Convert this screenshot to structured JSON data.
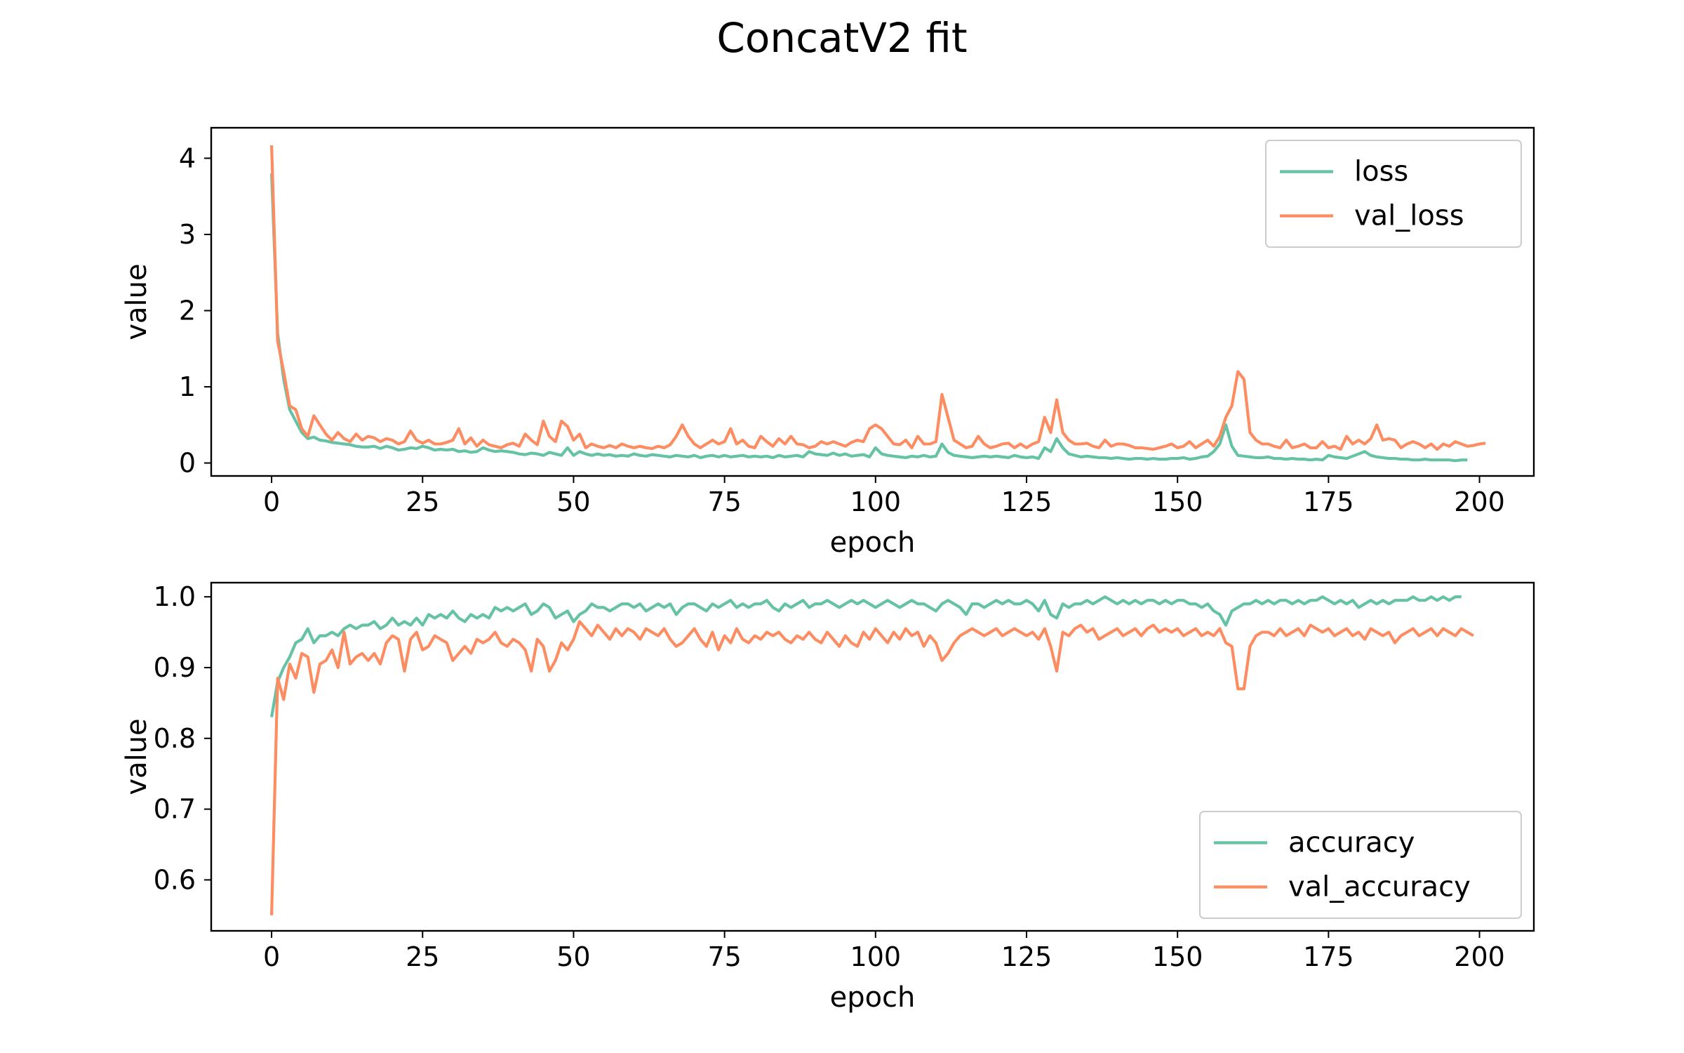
{
  "figure_title": "ConcatV2 fit",
  "colors": {
    "series_1": "#66c2a5",
    "series_2": "#fc8d62",
    "axes": "#000000",
    "legend_border": "#cccccc"
  },
  "chart_data": [
    {
      "type": "line",
      "xlabel": "epoch",
      "ylabel": "value",
      "xlim": [
        -10,
        209
      ],
      "ylim": [
        -0.17,
        4.4
      ],
      "xticks": [
        0,
        25,
        50,
        75,
        100,
        125,
        150,
        175,
        200
      ],
      "yticks": [
        0,
        1,
        2,
        3,
        4
      ],
      "ytick_labels": [
        "0",
        "1",
        "2",
        "3",
        "4"
      ],
      "grid": false,
      "legend_position": "top-right",
      "series": [
        {
          "name": "loss",
          "color": "#66c2a5",
          "values": [
            3.8,
            1.7,
            1.1,
            0.7,
            0.55,
            0.4,
            0.32,
            0.34,
            0.3,
            0.29,
            0.27,
            0.26,
            0.25,
            0.24,
            0.22,
            0.21,
            0.21,
            0.22,
            0.19,
            0.22,
            0.2,
            0.17,
            0.18,
            0.2,
            0.19,
            0.22,
            0.2,
            0.17,
            0.18,
            0.17,
            0.18,
            0.15,
            0.16,
            0.14,
            0.15,
            0.2,
            0.17,
            0.15,
            0.16,
            0.15,
            0.14,
            0.12,
            0.11,
            0.13,
            0.12,
            0.1,
            0.14,
            0.12,
            0.1,
            0.2,
            0.1,
            0.15,
            0.12,
            0.1,
            0.12,
            0.1,
            0.11,
            0.09,
            0.1,
            0.09,
            0.12,
            0.1,
            0.09,
            0.11,
            0.1,
            0.09,
            0.08,
            0.1,
            0.09,
            0.08,
            0.1,
            0.07,
            0.09,
            0.1,
            0.08,
            0.1,
            0.08,
            0.09,
            0.1,
            0.08,
            0.09,
            0.08,
            0.09,
            0.07,
            0.1,
            0.08,
            0.09,
            0.1,
            0.08,
            0.15,
            0.12,
            0.11,
            0.1,
            0.13,
            0.1,
            0.12,
            0.09,
            0.1,
            0.11,
            0.08,
            0.2,
            0.12,
            0.1,
            0.09,
            0.08,
            0.07,
            0.09,
            0.08,
            0.1,
            0.08,
            0.09,
            0.25,
            0.14,
            0.1,
            0.09,
            0.08,
            0.07,
            0.08,
            0.09,
            0.08,
            0.09,
            0.08,
            0.07,
            0.1,
            0.08,
            0.07,
            0.08,
            0.06,
            0.2,
            0.15,
            0.32,
            0.2,
            0.12,
            0.1,
            0.08,
            0.09,
            0.08,
            0.07,
            0.07,
            0.06,
            0.07,
            0.06,
            0.05,
            0.06,
            0.06,
            0.05,
            0.06,
            0.05,
            0.05,
            0.06,
            0.06,
            0.07,
            0.05,
            0.06,
            0.08,
            0.09,
            0.15,
            0.25,
            0.5,
            0.22,
            0.1,
            0.09,
            0.08,
            0.07,
            0.07,
            0.08,
            0.06,
            0.06,
            0.05,
            0.06,
            0.05,
            0.05,
            0.04,
            0.05,
            0.04,
            0.1,
            0.08,
            0.07,
            0.06,
            0.09,
            0.12,
            0.15,
            0.1,
            0.08,
            0.07,
            0.06,
            0.06,
            0.05,
            0.05,
            0.04,
            0.04,
            0.05,
            0.04,
            0.04,
            0.04,
            0.04,
            0.03,
            0.04,
            0.04
          ]
        },
        {
          "name": "val_loss",
          "color": "#fc8d62",
          "values": [
            4.17,
            1.6,
            1.2,
            0.75,
            0.7,
            0.45,
            0.35,
            0.62,
            0.5,
            0.38,
            0.3,
            0.4,
            0.32,
            0.28,
            0.38,
            0.3,
            0.35,
            0.33,
            0.28,
            0.32,
            0.3,
            0.25,
            0.28,
            0.42,
            0.3,
            0.26,
            0.3,
            0.25,
            0.25,
            0.27,
            0.3,
            0.45,
            0.25,
            0.33,
            0.22,
            0.3,
            0.24,
            0.22,
            0.2,
            0.24,
            0.26,
            0.22,
            0.38,
            0.3,
            0.24,
            0.55,
            0.35,
            0.28,
            0.55,
            0.48,
            0.3,
            0.38,
            0.2,
            0.25,
            0.22,
            0.2,
            0.23,
            0.2,
            0.25,
            0.22,
            0.2,
            0.22,
            0.2,
            0.19,
            0.22,
            0.2,
            0.24,
            0.35,
            0.5,
            0.35,
            0.25,
            0.2,
            0.25,
            0.3,
            0.25,
            0.28,
            0.45,
            0.25,
            0.3,
            0.22,
            0.2,
            0.35,
            0.28,
            0.22,
            0.32,
            0.25,
            0.35,
            0.25,
            0.24,
            0.2,
            0.22,
            0.28,
            0.25,
            0.28,
            0.25,
            0.22,
            0.27,
            0.3,
            0.28,
            0.45,
            0.5,
            0.45,
            0.35,
            0.25,
            0.24,
            0.3,
            0.2,
            0.35,
            0.25,
            0.25,
            0.28,
            0.9,
            0.6,
            0.3,
            0.25,
            0.2,
            0.22,
            0.35,
            0.25,
            0.2,
            0.22,
            0.25,
            0.26,
            0.2,
            0.25,
            0.2,
            0.25,
            0.28,
            0.6,
            0.4,
            0.83,
            0.4,
            0.3,
            0.25,
            0.25,
            0.26,
            0.22,
            0.2,
            0.3,
            0.22,
            0.25,
            0.25,
            0.23,
            0.2,
            0.2,
            0.19,
            0.18,
            0.2,
            0.22,
            0.25,
            0.2,
            0.22,
            0.28,
            0.2,
            0.25,
            0.3,
            0.22,
            0.35,
            0.6,
            0.75,
            1.2,
            1.1,
            0.4,
            0.3,
            0.25,
            0.25,
            0.22,
            0.2,
            0.3,
            0.2,
            0.22,
            0.25,
            0.2,
            0.2,
            0.28,
            0.2,
            0.22,
            0.18,
            0.35,
            0.25,
            0.3,
            0.25,
            0.32,
            0.5,
            0.3,
            0.32,
            0.3,
            0.2,
            0.25,
            0.28,
            0.25,
            0.2,
            0.25,
            0.18,
            0.25,
            0.22,
            0.28,
            0.25,
            0.22,
            0.23,
            0.25,
            0.26
          ]
        }
      ]
    },
    {
      "type": "line",
      "xlabel": "epoch",
      "ylabel": "value",
      "xlim": [
        -10,
        209
      ],
      "ylim": [
        0.528,
        1.02
      ],
      "xticks": [
        0,
        25,
        50,
        75,
        100,
        125,
        150,
        175,
        200
      ],
      "yticks": [
        0.6,
        0.7,
        0.8,
        0.9,
        1.0
      ],
      "ytick_labels": [
        "0.6",
        "0.7",
        "0.8",
        "0.9",
        "1.0"
      ],
      "grid": false,
      "legend_position": "bottom-right",
      "series": [
        {
          "name": "accuracy",
          "color": "#66c2a5",
          "values": [
            0.83,
            0.88,
            0.9,
            0.915,
            0.935,
            0.94,
            0.955,
            0.935,
            0.945,
            0.945,
            0.95,
            0.945,
            0.955,
            0.96,
            0.955,
            0.96,
            0.96,
            0.965,
            0.955,
            0.96,
            0.97,
            0.96,
            0.965,
            0.96,
            0.97,
            0.96,
            0.975,
            0.97,
            0.975,
            0.97,
            0.98,
            0.97,
            0.965,
            0.975,
            0.97,
            0.975,
            0.97,
            0.985,
            0.98,
            0.985,
            0.98,
            0.985,
            0.99,
            0.975,
            0.98,
            0.99,
            0.985,
            0.97,
            0.975,
            0.98,
            0.965,
            0.975,
            0.98,
            0.99,
            0.985,
            0.985,
            0.98,
            0.985,
            0.99,
            0.99,
            0.985,
            0.99,
            0.98,
            0.985,
            0.99,
            0.985,
            0.99,
            0.975,
            0.985,
            0.99,
            0.99,
            0.985,
            0.98,
            0.99,
            0.985,
            0.99,
            0.995,
            0.985,
            0.99,
            0.985,
            0.99,
            0.99,
            0.995,
            0.985,
            0.98,
            0.99,
            0.985,
            0.99,
            0.995,
            0.985,
            0.99,
            0.99,
            0.995,
            0.99,
            0.985,
            0.99,
            0.995,
            0.99,
            0.995,
            0.99,
            0.985,
            0.99,
            0.995,
            0.99,
            0.985,
            0.99,
            0.995,
            0.99,
            0.99,
            0.985,
            0.98,
            0.99,
            0.995,
            0.99,
            0.985,
            0.975,
            0.99,
            0.99,
            0.985,
            0.99,
            0.995,
            0.99,
            0.995,
            0.99,
            0.99,
            0.995,
            0.99,
            0.98,
            0.995,
            0.975,
            0.97,
            0.99,
            0.985,
            0.99,
            0.99,
            0.995,
            0.99,
            0.995,
            1.0,
            0.995,
            0.99,
            0.995,
            0.99,
            0.995,
            0.99,
            0.995,
            0.995,
            0.99,
            0.995,
            0.99,
            0.995,
            0.995,
            0.99,
            0.99,
            0.985,
            0.99,
            0.98,
            0.975,
            0.96,
            0.98,
            0.985,
            0.99,
            0.99,
            0.995,
            0.99,
            0.995,
            0.99,
            0.995,
            0.995,
            0.99,
            0.995,
            0.99,
            0.995,
            0.995,
            1.0,
            0.995,
            0.99,
            0.995,
            0.99,
            0.995,
            0.985,
            0.99,
            0.995,
            0.99,
            0.995,
            0.99,
            0.995,
            0.995,
            0.995,
            1.0,
            0.995,
            0.995,
            1.0,
            0.995,
            1.0,
            0.995,
            1.0,
            1.0
          ]
        },
        {
          "name": "val_accuracy",
          "color": "#fc8d62",
          "values": [
            0.55,
            0.885,
            0.855,
            0.905,
            0.885,
            0.92,
            0.915,
            0.865,
            0.905,
            0.91,
            0.925,
            0.9,
            0.95,
            0.905,
            0.915,
            0.92,
            0.91,
            0.92,
            0.905,
            0.935,
            0.945,
            0.94,
            0.895,
            0.94,
            0.95,
            0.925,
            0.93,
            0.945,
            0.94,
            0.935,
            0.91,
            0.92,
            0.93,
            0.92,
            0.94,
            0.935,
            0.94,
            0.95,
            0.935,
            0.93,
            0.94,
            0.935,
            0.925,
            0.895,
            0.94,
            0.93,
            0.895,
            0.91,
            0.935,
            0.925,
            0.94,
            0.965,
            0.955,
            0.945,
            0.96,
            0.95,
            0.94,
            0.955,
            0.945,
            0.955,
            0.95,
            0.94,
            0.955,
            0.95,
            0.945,
            0.955,
            0.94,
            0.93,
            0.935,
            0.945,
            0.955,
            0.94,
            0.93,
            0.95,
            0.925,
            0.945,
            0.935,
            0.955,
            0.94,
            0.935,
            0.945,
            0.94,
            0.95,
            0.945,
            0.95,
            0.94,
            0.935,
            0.945,
            0.94,
            0.95,
            0.94,
            0.935,
            0.95,
            0.94,
            0.93,
            0.945,
            0.935,
            0.93,
            0.95,
            0.94,
            0.955,
            0.945,
            0.935,
            0.95,
            0.94,
            0.955,
            0.945,
            0.95,
            0.93,
            0.945,
            0.935,
            0.91,
            0.92,
            0.935,
            0.945,
            0.95,
            0.955,
            0.95,
            0.945,
            0.95,
            0.955,
            0.945,
            0.95,
            0.955,
            0.95,
            0.945,
            0.95,
            0.94,
            0.955,
            0.93,
            0.895,
            0.95,
            0.945,
            0.955,
            0.96,
            0.95,
            0.955,
            0.94,
            0.945,
            0.95,
            0.955,
            0.945,
            0.95,
            0.955,
            0.945,
            0.955,
            0.96,
            0.95,
            0.955,
            0.95,
            0.955,
            0.945,
            0.95,
            0.955,
            0.945,
            0.95,
            0.945,
            0.955,
            0.935,
            0.93,
            0.87,
            0.87,
            0.93,
            0.945,
            0.95,
            0.95,
            0.945,
            0.955,
            0.945,
            0.95,
            0.955,
            0.945,
            0.96,
            0.955,
            0.95,
            0.955,
            0.945,
            0.95,
            0.955,
            0.945,
            0.95,
            0.94,
            0.955,
            0.95,
            0.945,
            0.95,
            0.935,
            0.945,
            0.95,
            0.955,
            0.945,
            0.95,
            0.955,
            0.945,
            0.955,
            0.95,
            0.945,
            0.955,
            0.95,
            0.945
          ]
        }
      ]
    }
  ]
}
